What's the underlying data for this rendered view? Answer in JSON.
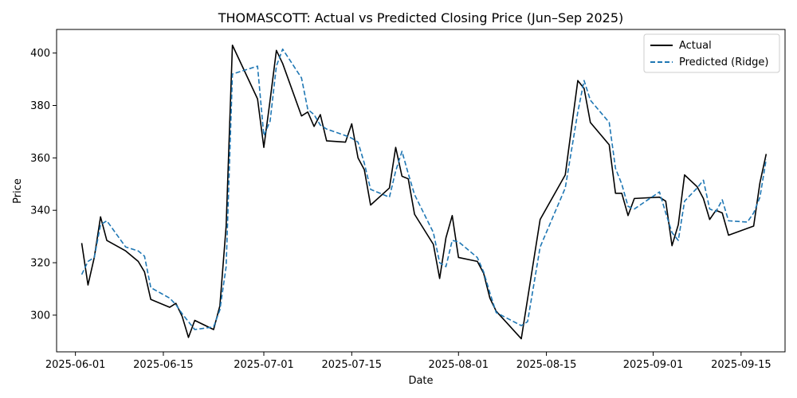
{
  "chart_data": {
    "type": "line",
    "title": "THOMASCOTT: Actual vs Predicted Closing Price (Jun–Sep 2025)",
    "xlabel": "Date",
    "ylabel": "Price",
    "xlim": [
      "2025-05-29",
      "2025-09-22"
    ],
    "ylim": [
      286,
      409
    ],
    "x_ticks": [
      "2025-06-01",
      "2025-06-15",
      "2025-07-01",
      "2025-07-15",
      "2025-08-01",
      "2025-08-15",
      "2025-09-01",
      "2025-09-15"
    ],
    "y_ticks": [
      300,
      320,
      340,
      360,
      380,
      400
    ],
    "legend_position": "top-right",
    "grid": false,
    "series": [
      {
        "name": "Actual",
        "color": "#000000",
        "dash": "solid",
        "points": [
          [
            "2025-06-02",
            327.5
          ],
          [
            "2025-06-03",
            311.5
          ],
          [
            "2025-06-04",
            322.0
          ],
          [
            "2025-06-05",
            337.5
          ],
          [
            "2025-06-06",
            328.5
          ],
          [
            "2025-06-09",
            324.5
          ],
          [
            "2025-06-11",
            320.5
          ],
          [
            "2025-06-12",
            316.5
          ],
          [
            "2025-06-13",
            306.0
          ],
          [
            "2025-06-16",
            303.0
          ],
          [
            "2025-06-17",
            304.5
          ],
          [
            "2025-06-18",
            299.5
          ],
          [
            "2025-06-19",
            291.5
          ],
          [
            "2025-06-20",
            298.0
          ],
          [
            "2025-06-23",
            294.5
          ],
          [
            "2025-06-24",
            303.5
          ],
          [
            "2025-06-25",
            334.0
          ],
          [
            "2025-06-26",
            403.0
          ],
          [
            "2025-06-30",
            382.5
          ],
          [
            "2025-07-01",
            364.0
          ],
          [
            "2025-07-02",
            382.0
          ],
          [
            "2025-07-03",
            401.0
          ],
          [
            "2025-07-04",
            396.0
          ],
          [
            "2025-07-07",
            376.0
          ],
          [
            "2025-07-08",
            377.5
          ],
          [
            "2025-07-09",
            372.0
          ],
          [
            "2025-07-10",
            376.5
          ],
          [
            "2025-07-11",
            366.5
          ],
          [
            "2025-07-14",
            366.0
          ],
          [
            "2025-07-15",
            373.0
          ],
          [
            "2025-07-16",
            360.0
          ],
          [
            "2025-07-17",
            355.5
          ],
          [
            "2025-07-18",
            342.0
          ],
          [
            "2025-07-21",
            348.5
          ],
          [
            "2025-07-22",
            364.0
          ],
          [
            "2025-07-23",
            353.0
          ],
          [
            "2025-07-24",
            352.0
          ],
          [
            "2025-07-25",
            338.5
          ],
          [
            "2025-07-28",
            327.0
          ],
          [
            "2025-07-29",
            314.0
          ],
          [
            "2025-07-30",
            329.5
          ],
          [
            "2025-07-31",
            338.0
          ],
          [
            "2025-08-01",
            322.0
          ],
          [
            "2025-08-04",
            320.5
          ],
          [
            "2025-08-05",
            316.0
          ],
          [
            "2025-08-06",
            306.5
          ],
          [
            "2025-08-07",
            301.5
          ],
          [
            "2025-08-11",
            291.0
          ],
          [
            "2025-08-14",
            336.5
          ],
          [
            "2025-08-18",
            353.5
          ],
          [
            "2025-08-20",
            389.5
          ],
          [
            "2025-08-21",
            386.5
          ],
          [
            "2025-08-22",
            373.5
          ],
          [
            "2025-08-25",
            365.0
          ],
          [
            "2025-08-26",
            346.5
          ],
          [
            "2025-08-27",
            346.5
          ],
          [
            "2025-08-28",
            338.0
          ],
          [
            "2025-08-29",
            344.5
          ],
          [
            "2025-09-02",
            345.0
          ],
          [
            "2025-09-03",
            343.5
          ],
          [
            "2025-09-04",
            326.5
          ],
          [
            "2025-09-05",
            334.5
          ],
          [
            "2025-09-06",
            353.5
          ],
          [
            "2025-09-08",
            349.0
          ],
          [
            "2025-09-09",
            344.5
          ],
          [
            "2025-09-10",
            336.5
          ],
          [
            "2025-09-11",
            340.0
          ],
          [
            "2025-09-12",
            339.0
          ],
          [
            "2025-09-13",
            330.5
          ],
          [
            "2025-09-17",
            334.0
          ],
          [
            "2025-09-18",
            350.5
          ],
          [
            "2025-09-19",
            361.5
          ]
        ]
      },
      {
        "name": "Predicted (Ridge)",
        "color": "#1f77b4",
        "dash": "dashed",
        "points": [
          [
            "2025-06-02",
            315.5
          ],
          [
            "2025-06-03",
            320.5
          ],
          [
            "2025-06-04",
            322.0
          ],
          [
            "2025-06-05",
            334.5
          ],
          [
            "2025-06-06",
            336.0
          ],
          [
            "2025-06-09",
            326.0
          ],
          [
            "2025-06-11",
            324.5
          ],
          [
            "2025-06-12",
            322.5
          ],
          [
            "2025-06-13",
            310.5
          ],
          [
            "2025-06-16",
            306.5
          ],
          [
            "2025-06-17",
            304.0
          ],
          [
            "2025-06-18",
            300.5
          ],
          [
            "2025-06-19",
            297.5
          ],
          [
            "2025-06-20",
            294.5
          ],
          [
            "2025-06-23",
            295.5
          ],
          [
            "2025-06-24",
            302.0
          ],
          [
            "2025-06-25",
            318.5
          ],
          [
            "2025-06-26",
            392.0
          ],
          [
            "2025-06-30",
            395.0
          ],
          [
            "2025-07-01",
            368.5
          ],
          [
            "2025-07-02",
            374.0
          ],
          [
            "2025-07-03",
            395.0
          ],
          [
            "2025-07-04",
            401.5
          ],
          [
            "2025-07-07",
            390.5
          ],
          [
            "2025-07-08",
            378.5
          ],
          [
            "2025-07-09",
            376.5
          ],
          [
            "2025-07-10",
            372.5
          ],
          [
            "2025-07-11",
            371.0
          ],
          [
            "2025-07-14",
            368.5
          ],
          [
            "2025-07-15",
            367.5
          ],
          [
            "2025-07-16",
            366.0
          ],
          [
            "2025-07-17",
            358.0
          ],
          [
            "2025-07-18",
            348.0
          ],
          [
            "2025-07-21",
            345.0
          ],
          [
            "2025-07-22",
            355.0
          ],
          [
            "2025-07-23",
            362.5
          ],
          [
            "2025-07-24",
            354.0
          ],
          [
            "2025-07-25",
            346.0
          ],
          [
            "2025-07-28",
            331.5
          ],
          [
            "2025-07-29",
            320.0
          ],
          [
            "2025-07-30",
            318.5
          ],
          [
            "2025-07-31",
            328.5
          ],
          [
            "2025-08-01",
            328.0
          ],
          [
            "2025-08-04",
            322.0
          ],
          [
            "2025-08-05",
            316.5
          ],
          [
            "2025-08-06",
            308.5
          ],
          [
            "2025-08-07",
            301.0
          ],
          [
            "2025-08-11",
            296.0
          ],
          [
            "2025-08-12",
            297.5
          ],
          [
            "2025-08-14",
            326.0
          ],
          [
            "2025-08-18",
            348.5
          ],
          [
            "2025-08-20",
            377.5
          ],
          [
            "2025-08-21",
            389.5
          ],
          [
            "2025-08-22",
            382.0
          ],
          [
            "2025-08-25",
            373.5
          ],
          [
            "2025-08-26",
            356.0
          ],
          [
            "2025-08-27",
            350.0
          ],
          [
            "2025-08-28",
            341.5
          ],
          [
            "2025-08-29",
            340.5
          ],
          [
            "2025-09-02",
            347.0
          ],
          [
            "2025-09-03",
            339.0
          ],
          [
            "2025-09-04",
            331.5
          ],
          [
            "2025-09-05",
            328.5
          ],
          [
            "2025-09-06",
            343.5
          ],
          [
            "2025-09-08",
            348.5
          ],
          [
            "2025-09-09",
            351.5
          ],
          [
            "2025-09-10",
            340.5
          ],
          [
            "2025-09-11",
            339.5
          ],
          [
            "2025-09-12",
            344.0
          ],
          [
            "2025-09-13",
            336.0
          ],
          [
            "2025-09-16",
            335.5
          ],
          [
            "2025-09-17",
            339.0
          ],
          [
            "2025-09-18",
            345.0
          ],
          [
            "2025-09-19",
            359.5
          ]
        ]
      }
    ]
  }
}
